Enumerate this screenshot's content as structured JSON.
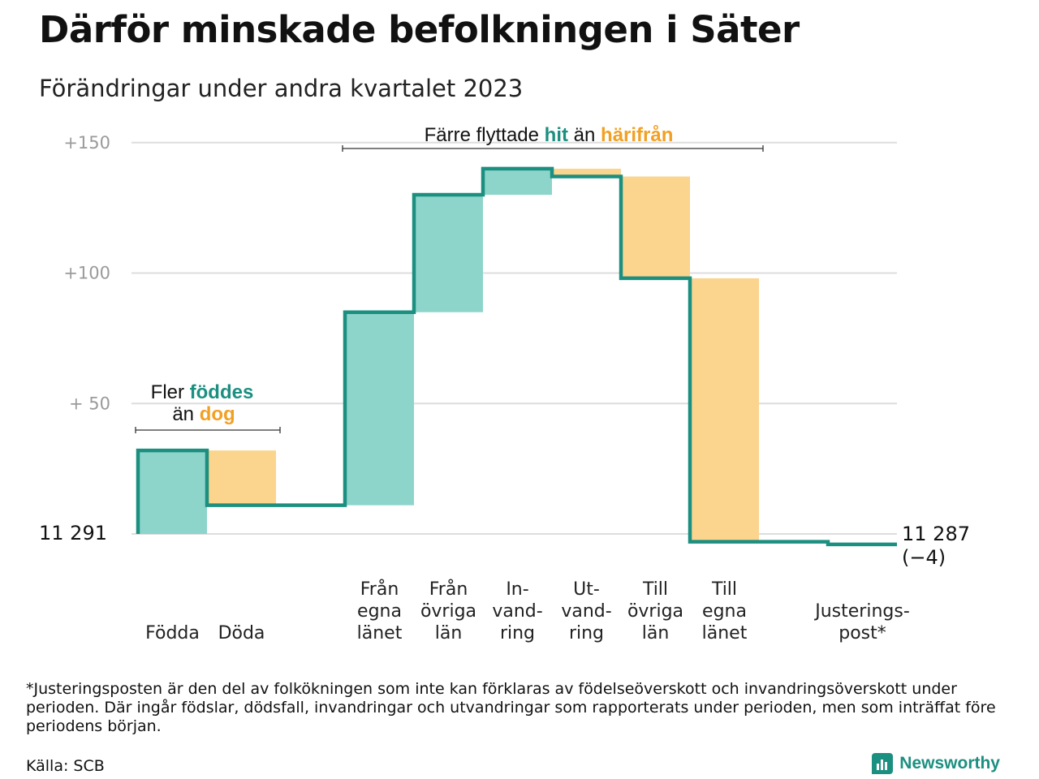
{
  "title": "Därför minskade befolkningen i Säter",
  "subtitle": "Förändringar under andra kvartalet 2023",
  "colors": {
    "in": "#8dd4cb",
    "out": "#fbd48e",
    "line": "#1b8f80",
    "in_text": "#1b8f80",
    "out_text": "#f2a023",
    "grid": "#dddddd"
  },
  "annotations": {
    "natural": {
      "line1_pre": "Fler ",
      "line1_hl": "föddes",
      "line2_pre": "än ",
      "line2_hl": "dog"
    },
    "migration": {
      "pre": "Färre flyttade ",
      "hl1": "hit",
      "mid": " än ",
      "hl2": "härifrån"
    }
  },
  "chart_data": {
    "type": "waterfall",
    "start_label": "11  291",
    "start_value": 0,
    "end_label": "11 287",
    "end_change_label": "(−4)",
    "ylim": [
      -5,
      150
    ],
    "yticks": [
      0,
      50,
      100,
      150
    ],
    "ytick_labels": [
      "",
      "+  50",
      "+100",
      "+150"
    ],
    "steps": [
      {
        "label": [
          "Födda"
        ],
        "value": 32,
        "kind": "in"
      },
      {
        "label": [
          "Döda"
        ],
        "value": -21,
        "kind": "out"
      },
      {
        "label": [],
        "value": 0,
        "kind": "none"
      },
      {
        "label": [
          "Från",
          "egna",
          "länet"
        ],
        "value": 74,
        "kind": "in"
      },
      {
        "label": [
          "Från",
          "övriga",
          "län"
        ],
        "value": 45,
        "kind": "in"
      },
      {
        "label": [
          "In-",
          "vand-",
          "ring"
        ],
        "value": 10,
        "kind": "in"
      },
      {
        "label": [
          "Ut-",
          "vand-",
          "ring"
        ],
        "value": -3,
        "kind": "out"
      },
      {
        "label": [
          "Till",
          "övriga",
          "län"
        ],
        "value": -39,
        "kind": "out"
      },
      {
        "label": [
          "Till",
          "egna",
          "länet"
        ],
        "value": -101,
        "kind": "out"
      },
      {
        "label": [],
        "value": 0,
        "kind": "none"
      },
      {
        "label": [
          "Justerings-",
          "post*"
        ],
        "value": -1,
        "kind": "none"
      }
    ]
  },
  "footnote": "*Justeringsposten är den del av folkökningen som inte kan förklaras av födelseöverskott och invandringsöverskott under perioden. Där ingår födslar, dödsfall, invandringar och utvandringar som rapporterats under perioden, men som inträffat före periodens början.",
  "source": "Källa: SCB",
  "brand": "Newsworthy"
}
